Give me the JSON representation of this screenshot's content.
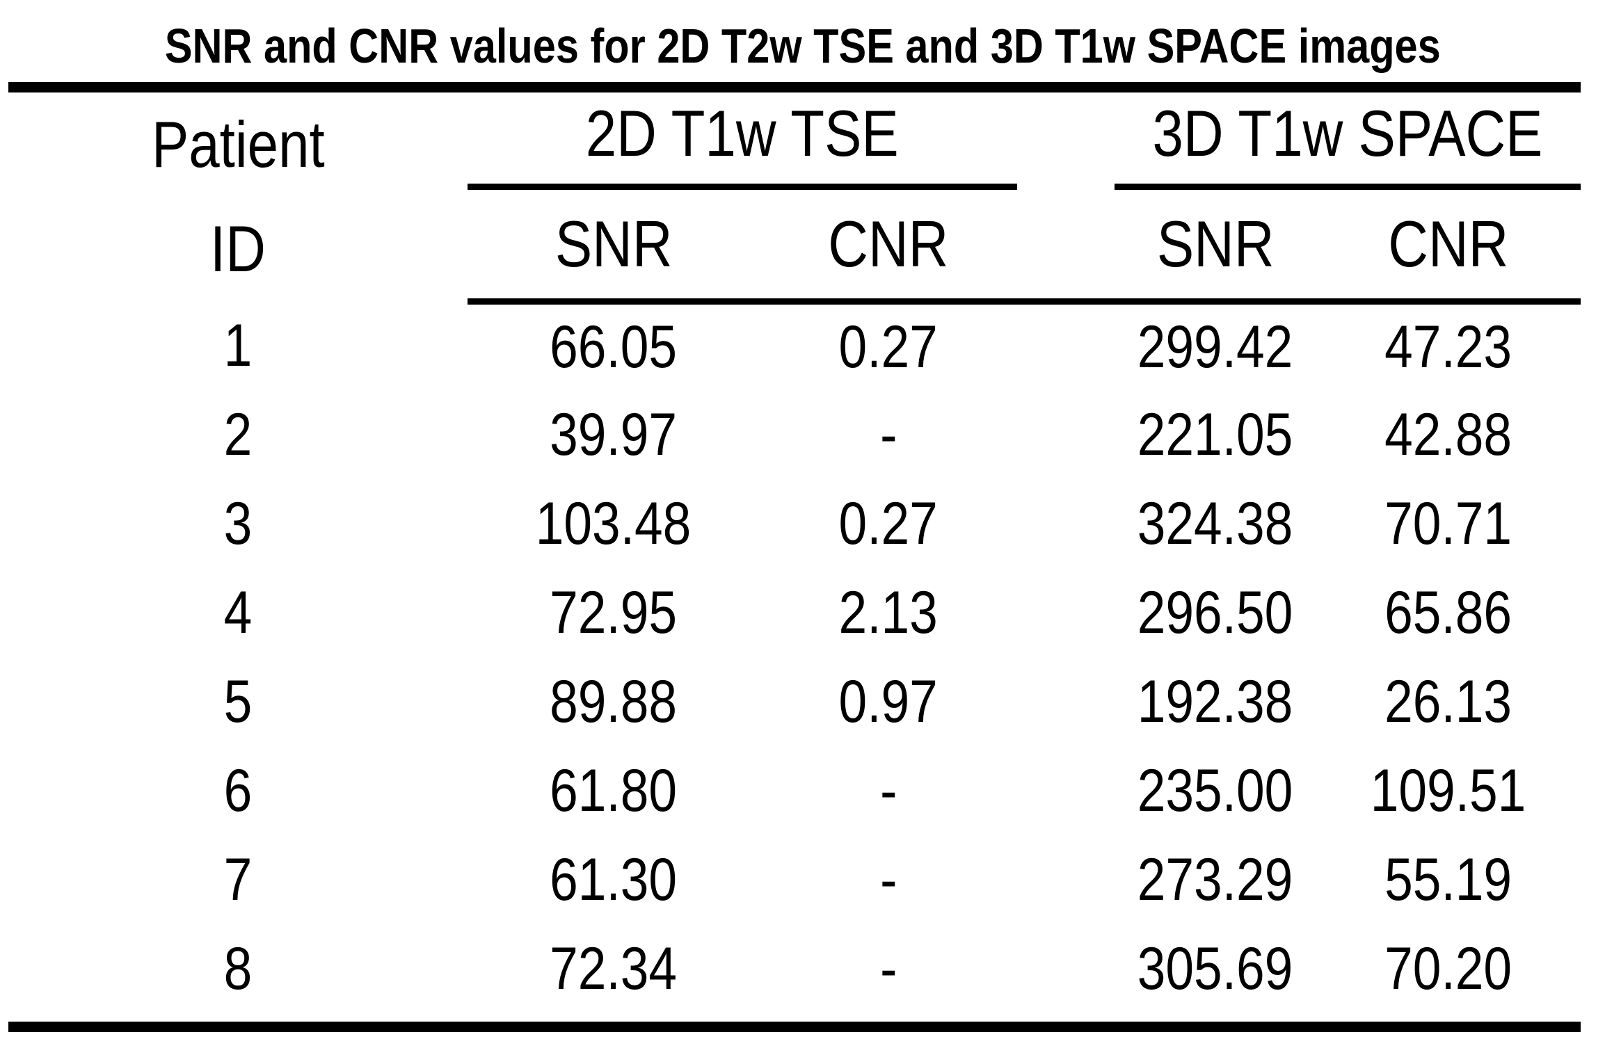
{
  "title": "SNR and CNR values for 2D T2w TSE and 3D T1w SPACE images",
  "table": {
    "row_header": {
      "line1": "Patient",
      "line2": "ID"
    },
    "groups": [
      {
        "label": "2D T1w TSE"
      },
      {
        "label": "3D T1w SPACE"
      }
    ],
    "subheaders": [
      "SNR",
      "CNR",
      "SNR",
      "CNR"
    ],
    "rows": [
      {
        "id": "1",
        "tse_snr": "66.05",
        "tse_cnr": "0.27",
        "space_snr": "299.42",
        "space_cnr": "47.23"
      },
      {
        "id": "2",
        "tse_snr": "39.97",
        "tse_cnr": "-",
        "space_snr": "221.05",
        "space_cnr": "42.88"
      },
      {
        "id": "3",
        "tse_snr": "103.48",
        "tse_cnr": "0.27",
        "space_snr": "324.38",
        "space_cnr": "70.71"
      },
      {
        "id": "4",
        "tse_snr": "72.95",
        "tse_cnr": "2.13",
        "space_snr": "296.50",
        "space_cnr": "65.86"
      },
      {
        "id": "5",
        "tse_snr": "89.88",
        "tse_cnr": "0.97",
        "space_snr": "192.38",
        "space_cnr": "26.13"
      },
      {
        "id": "6",
        "tse_snr": "61.80",
        "tse_cnr": "-",
        "space_snr": "235.00",
        "space_cnr": "109.51"
      },
      {
        "id": "7",
        "tse_snr": "61.30",
        "tse_cnr": "-",
        "space_snr": "273.29",
        "space_cnr": "55.19"
      },
      {
        "id": "8",
        "tse_snr": "72.34",
        "tse_cnr": "-",
        "space_snr": "305.69",
        "space_cnr": "70.20"
      }
    ]
  },
  "chart_data": {
    "type": "table",
    "title": "SNR and CNR values for 2D T2w TSE and 3D T1w SPACE images",
    "columns": [
      "Patient ID",
      "2D T1w TSE SNR",
      "2D T1w TSE CNR",
      "3D T1w SPACE SNR",
      "3D T1w SPACE CNR"
    ],
    "rows": [
      [
        "1",
        "66.05",
        "0.27",
        "299.42",
        "47.23"
      ],
      [
        "2",
        "39.97",
        "-",
        "221.05",
        "42.88"
      ],
      [
        "3",
        "103.48",
        "0.27",
        "324.38",
        "70.71"
      ],
      [
        "4",
        "72.95",
        "2.13",
        "296.50",
        "65.86"
      ],
      [
        "5",
        "89.88",
        "0.97",
        "192.38",
        "26.13"
      ],
      [
        "6",
        "61.80",
        "-",
        "235.00",
        "109.51"
      ],
      [
        "7",
        "61.30",
        "-",
        "273.29",
        "55.19"
      ],
      [
        "8",
        "72.34",
        "-",
        "305.69",
        "70.20"
      ]
    ]
  }
}
